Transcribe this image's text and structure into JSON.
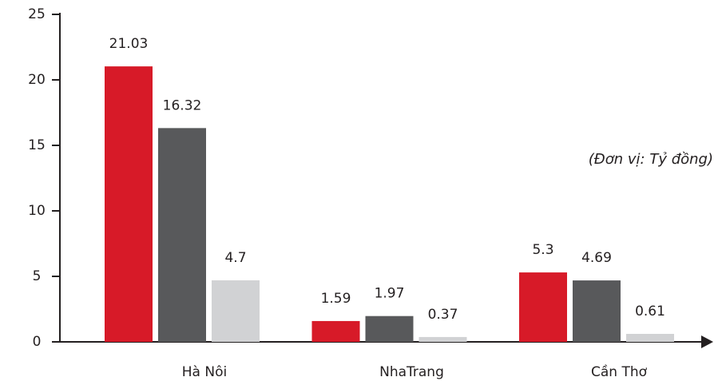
{
  "chart_data": {
    "type": "bar",
    "annotation": "(Đơn vị: Tỷ đồng)",
    "categories": [
      "Hà Nôi",
      "NhaTrang",
      "Cần Thơ"
    ],
    "series": [
      {
        "color": "#d71a28",
        "values": [
          21.03,
          1.59,
          5.3
        ]
      },
      {
        "color": "#58595b",
        "values": [
          16.32,
          1.97,
          4.69
        ]
      },
      {
        "color": "#d1d2d4",
        "values": [
          4.7,
          0.37,
          0.61
        ]
      }
    ],
    "ylim": [
      0,
      25
    ],
    "yticks": [
      0,
      5,
      10,
      15,
      20,
      25
    ],
    "grid": false
  }
}
